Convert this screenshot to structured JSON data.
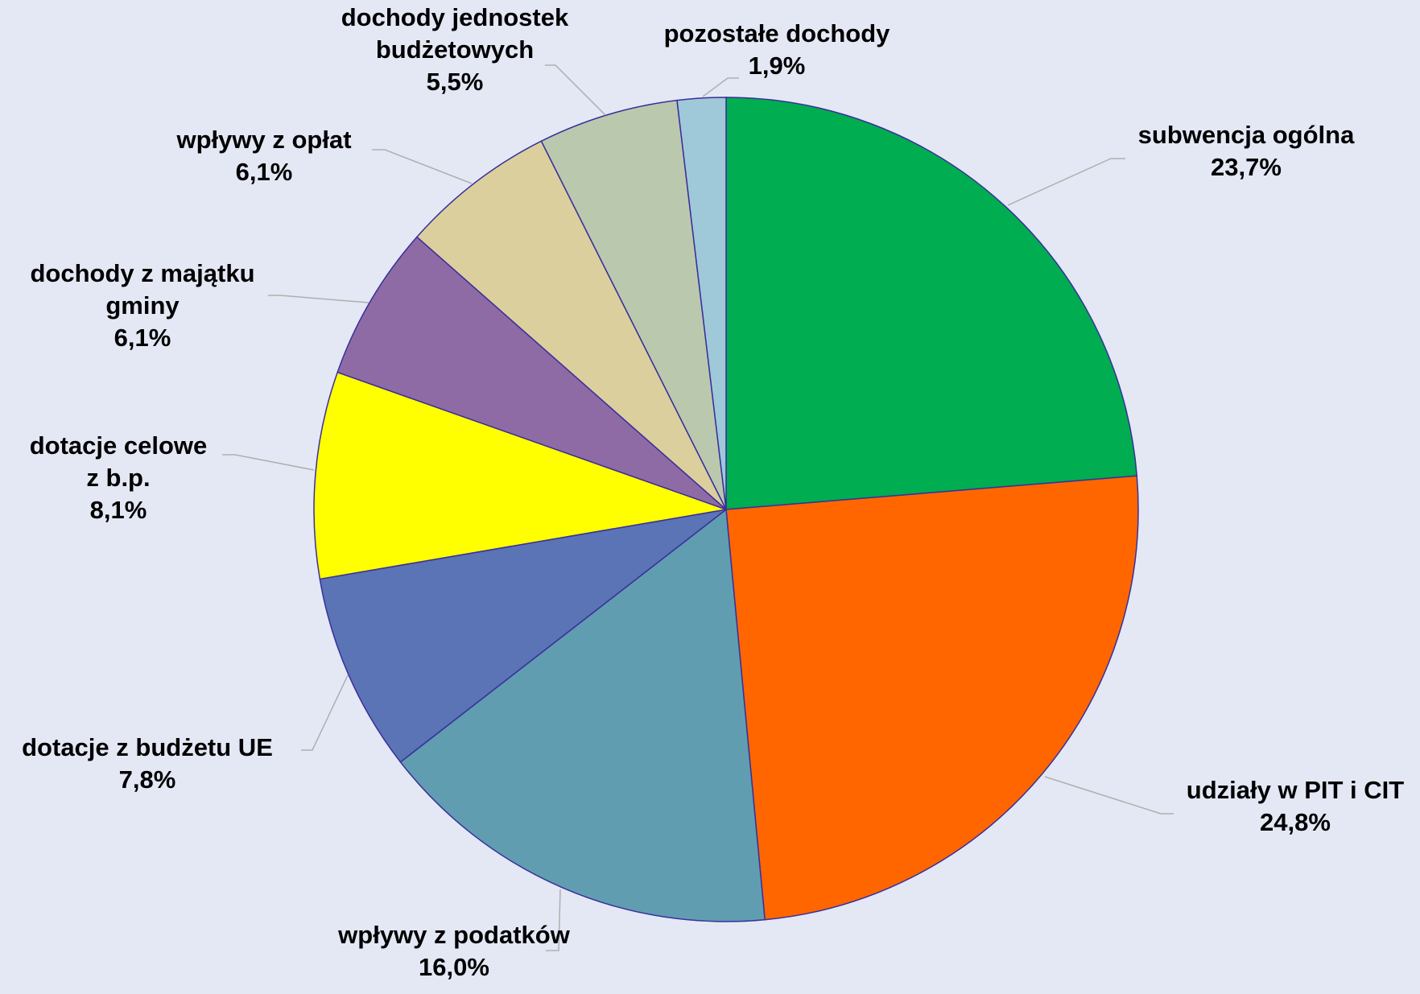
{
  "chart_data": {
    "type": "pie",
    "title": "",
    "start_angle_deg": 0,
    "direction": "clockwise",
    "slices": [
      {
        "lines": [
          "subwencja ogólna"
        ],
        "value_label": "23,7%",
        "value": 23.7,
        "color": "#00AD50"
      },
      {
        "lines": [
          "udziały w PIT i CIT"
        ],
        "value_label": "24,8%",
        "value": 24.8,
        "color": "#FF6600"
      },
      {
        "lines": [
          "wpływy z podatków"
        ],
        "value_label": "16,0%",
        "value": 16.0,
        "color": "#609DB1"
      },
      {
        "lines": [
          "dotacje z budżetu UE"
        ],
        "value_label": "7,8%",
        "value": 7.8,
        "color": "#5A74B6"
      },
      {
        "lines": [
          "dotacje celowe",
          "z b.p."
        ],
        "value_label": "8,1%",
        "value": 8.1,
        "color": "#FFFF00"
      },
      {
        "lines": [
          "dochody z majątku",
          "gminy"
        ],
        "value_label": "6,1%",
        "value": 6.1,
        "color": "#8F6BA5"
      },
      {
        "lines": [
          "wpływy z opłat"
        ],
        "value_label": "6,1%",
        "value": 6.1,
        "color": "#DBCF9E"
      },
      {
        "lines": [
          "dochody jednostek",
          "budżetowych"
        ],
        "value_label": "5,5%",
        "value": 5.5,
        "color": "#BAC8AE"
      },
      {
        "lines": [
          "pozostałe dochody"
        ],
        "value_label": "1,9%",
        "value": 1.9,
        "color": "#9FC8D8"
      }
    ]
  },
  "colors": {
    "background": "#E4E8F5",
    "slice_border": "#3A2F9A",
    "leader_line": "#AFAFAF"
  }
}
